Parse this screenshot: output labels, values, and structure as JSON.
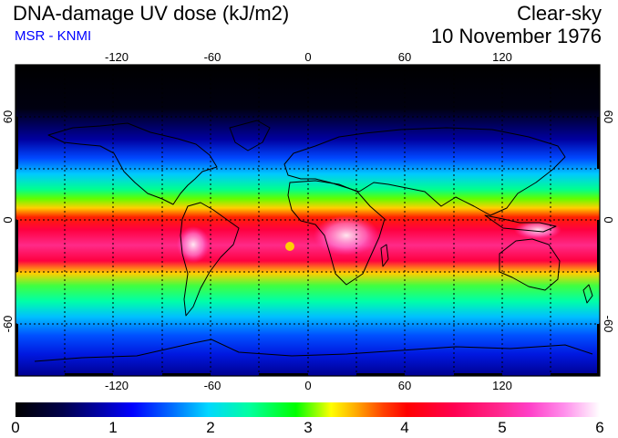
{
  "header": {
    "title": "DNA-damage UV dose (kJ/m2)",
    "credit": "MSR - KNMI",
    "mode": "Clear-sky",
    "date": "10 November 1976"
  },
  "map": {
    "projection": "equirectangular",
    "lon_ticks": [
      "-120",
      "-60",
      "0",
      "60",
      "120"
    ],
    "lat_ticks": [
      "60",
      "0",
      "-60"
    ],
    "grid": "dashed 30 degree lines"
  },
  "colorbar": {
    "labels": [
      "0",
      "1",
      "2",
      "3",
      "4",
      "5",
      "6"
    ],
    "min": 0,
    "max": 6,
    "colors": [
      "#000000",
      "#0000ff",
      "#00ffff",
      "#00ff00",
      "#ffff00",
      "#ff0000",
      "#ff40c8",
      "#ffffff"
    ]
  }
}
